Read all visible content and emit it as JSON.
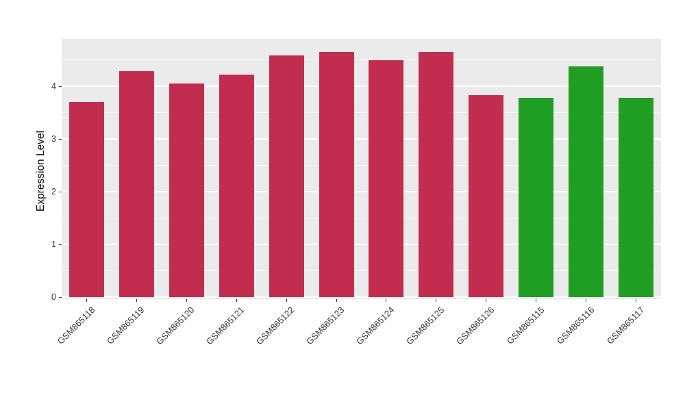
{
  "chart_data": {
    "type": "bar",
    "title": "",
    "ylabel": "Expression Level",
    "xlabel": "",
    "categories": [
      "GSM865118",
      "GSM865119",
      "GSM865120",
      "GSM865121",
      "GSM865122",
      "GSM865123",
      "GSM865124",
      "GSM865125",
      "GSM865126",
      "GSM865115",
      "GSM865116",
      "GSM865117"
    ],
    "values": [
      3.7,
      4.28,
      4.05,
      4.22,
      4.58,
      4.65,
      4.5,
      4.65,
      3.83,
      3.78,
      4.38,
      3.78
    ],
    "bar_colors": [
      "#C22D4F",
      "#C22D4F",
      "#C22D4F",
      "#C22D4F",
      "#C22D4F",
      "#C22D4F",
      "#C22D4F",
      "#C22D4F",
      "#C22D4F",
      "#1F9E23",
      "#1F9E23",
      "#1F9E23"
    ],
    "ylim": [
      0,
      4.9
    ],
    "yticks": [
      0,
      1,
      2,
      3,
      4
    ],
    "yticks_minor": [
      0.5,
      1.5,
      2.5,
      3.5,
      4.5
    ],
    "grid": true,
    "legend_position": "none",
    "panel_bg": "#EBEBEB",
    "grid_color": "#FFFFFF"
  }
}
